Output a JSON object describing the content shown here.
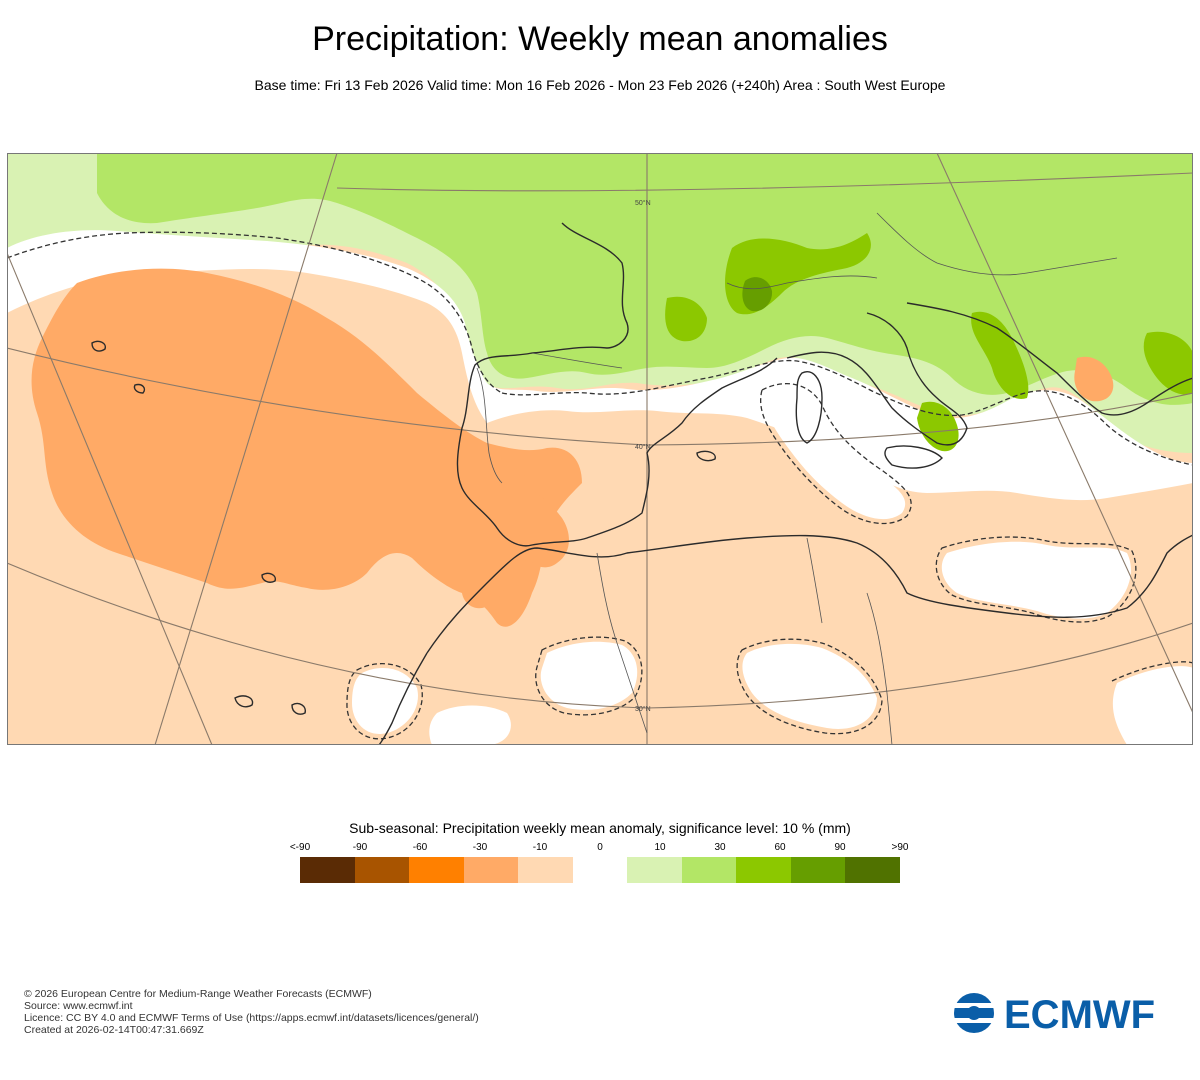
{
  "title": "Precipitation: Weekly mean anomalies",
  "subtitle": "Base time: Fri 13 Feb 2026 Valid time: Mon 16 Feb 2026 - Mon 23 Feb 2026 (+240h) Area : South West Europe",
  "map": {
    "gridline_labels": [
      "50°N",
      "40°N",
      "30°N"
    ],
    "region": "South West Europe"
  },
  "legend": {
    "title": "Sub-seasonal: Precipitation weekly mean anomaly, significance level: 10 % (mm)",
    "ticks": [
      "<-90",
      "-90",
      "-60",
      "-30",
      "-10",
      "0",
      "10",
      "30",
      "60",
      "90",
      ">90"
    ],
    "colors": [
      "#5a2b05",
      "#a85400",
      "#ff8000",
      "#ffaa66",
      "#ffd9b3",
      "#ffffff",
      "#d9f2b3",
      "#b3e666",
      "#8cc800",
      "#669e00",
      "#507200"
    ]
  },
  "footer": {
    "line1": "© 2026 European Centre for Medium-Range Weather Forecasts (ECMWF)",
    "line2": "Source: www.ecmwf.int",
    "line3": "Licence: CC BY 4.0 and ECMWF Terms of Use (https://apps.ecmwf.int/datasets/licences/general/)",
    "line4": "Created at 2026-02-14T00:47:31.669Z"
  },
  "logo": {
    "text": "ECMWF",
    "color": "#0a5ea8"
  }
}
